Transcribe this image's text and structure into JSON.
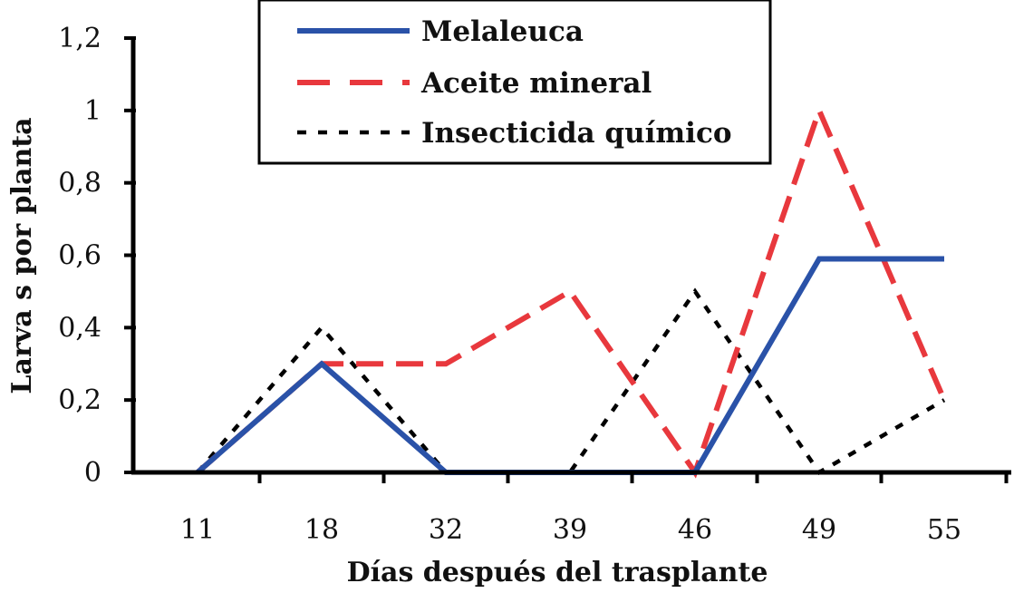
{
  "chart_data": {
    "type": "line",
    "title": "",
    "xlabel": "Días después del trasplante",
    "ylabel": "Larva s  por planta",
    "categories": [
      "11",
      "18",
      "32",
      "39",
      "46",
      "49",
      "55"
    ],
    "ylim": [
      0,
      1.2
    ],
    "yticks": [
      0,
      0.2,
      0.4,
      0.6,
      0.8,
      1,
      1.2
    ],
    "ytick_labels": [
      "0",
      "0,2",
      "0,4",
      "0,6",
      "0,8",
      "1",
      "1,2"
    ],
    "grid": false,
    "legend_position": "top-center",
    "series": [
      {
        "name": "Melaleuca",
        "values": [
          0,
          0.3,
          0,
          0,
          0,
          0.59,
          0.59
        ],
        "color": "#2a52a8",
        "style": "solid"
      },
      {
        "name": "Aceite mineral",
        "values": [
          0,
          0.3,
          0.3,
          0.5,
          0,
          1.0,
          0.2
        ],
        "color": "#e8383d",
        "style": "dashed"
      },
      {
        "name": "Insecticida químico",
        "values": [
          0,
          0.4,
          0,
          0,
          0.5,
          0,
          0.2
        ],
        "color": "#000000",
        "style": "dotted"
      }
    ]
  }
}
